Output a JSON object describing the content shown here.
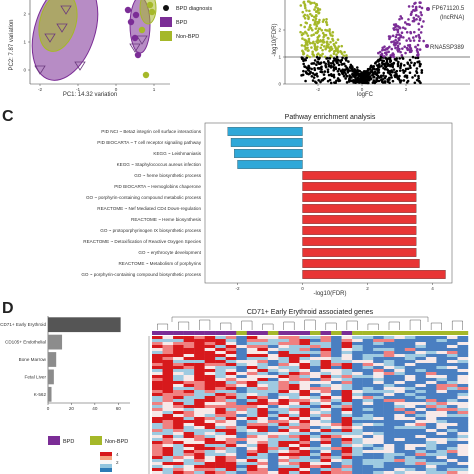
{
  "panels": {
    "c_letter": "C",
    "d_letter": "D"
  },
  "chart_data": [
    {
      "id": "pca",
      "type": "scatter",
      "xlabel": "PC1: 14.32  variation",
      "ylabel": "PC2: 7.87  variation",
      "xticks": [
        "-2",
        "-1",
        "0",
        "1"
      ],
      "yticks": [
        "0",
        "1",
        "2"
      ],
      "legend": [
        {
          "label": "BPD diagnosis",
          "marker": "dot",
          "color": "#111111"
        },
        {
          "label": "BPD",
          "color": "#7b2d96"
        },
        {
          "label": "Non-BPD",
          "color": "#a5b829"
        }
      ],
      "colors": {
        "bpd": "#7b2d96",
        "nonbpd": "#a5b829"
      }
    },
    {
      "id": "volcano",
      "type": "scatter",
      "xlabel": "logFC",
      "ylabel": "-log10(FDR)",
      "xticks": [
        "-2",
        "0",
        "2"
      ],
      "yticks": [
        "0",
        "1",
        "2"
      ],
      "annotations": [
        "FP671120.5",
        "(lncRNA)",
        "RNA5SP389"
      ],
      "colors": {
        "sig_down": "#a5b829",
        "sig_up": "#7b2d96",
        "ns": "#000000"
      }
    },
    {
      "id": "pathway",
      "type": "bar",
      "title": "Pathway enrichment analysis",
      "xlabel": "-log10(FDR)",
      "xticks": [
        "-2",
        "0",
        "2",
        "4"
      ],
      "xlim": [
        -3.0,
        4.6
      ],
      "categories": [
        "PID NCI ~ Beta2 integrin cell surface interactions",
        "PID BIOCARTA ~ T cell receptor signaling pathway",
        "KEGG ~ Leishmaniasis",
        "KEGG ~ Staphylococcus aureus infection",
        "GO ~ heme biosynthetic process",
        "PID BIOCARTA ~ Hemoglobins chaperone",
        "GO ~ porphyrin-containing compound metabolic process",
        "REACTOME ~ Nef Mediated CD4 Down-regulation",
        "REACTOME ~ Heme biosynthesis",
        "GO ~ protoporphyrinogen IX biosynthetic process",
        "REACTOME ~ Detoxification of Reactive Oxygen Species",
        "GO ~ erythrocyte development",
        "REACTOME ~ Metabolism of porphyrins",
        "GO ~ porphyrin-containing compound biosynthetic process"
      ],
      "values": [
        -2.3,
        -2.2,
        -2.1,
        -2.0,
        3.5,
        3.5,
        3.5,
        3.5,
        3.5,
        3.5,
        3.5,
        3.5,
        3.6,
        4.4
      ],
      "colors": {
        "neg": "#2fa8d8",
        "pos": "#e83535"
      }
    },
    {
      "id": "celltype",
      "type": "bar",
      "orientation": "horizontal",
      "categories": [
        "CD71+ Early Erythroid",
        "CD105+ Endothelial",
        "Bone Marrow",
        "Fetal Liver",
        "K-562"
      ],
      "values": [
        62,
        12,
        7,
        5,
        3
      ],
      "xticks": [
        "0",
        "20",
        "40",
        "60"
      ],
      "xlim": [
        0,
        70
      ],
      "highlight_color": "#555555",
      "color": "#8c8c8c"
    },
    {
      "id": "heatmap",
      "type": "heatmap",
      "title": "CD71+ Early Erythroid associated genes",
      "legend": [
        {
          "label": "BPD",
          "color": "#7b2d96"
        },
        {
          "label": "Non-BPD",
          "color": "#a5b829"
        }
      ],
      "colorbar_ticks": [
        "4",
        "2"
      ],
      "colorbar_colors": [
        "#d7191c",
        "#f4a582",
        "#f7f7f7",
        "#92c5de",
        "#2c7bb6"
      ],
      "sample_groups": [
        "BPD",
        "BPD",
        "BPD",
        "BPD",
        "BPD",
        "BPD",
        "BPD",
        "BPD",
        "Non-BPD",
        "BPD",
        "BPD",
        "Non-BPD",
        "BPD",
        "BPD",
        "BPD",
        "Non-BPD",
        "BPD",
        "Non-BPD",
        "BPD",
        "Non-BPD",
        "Non-BPD",
        "Non-BPD",
        "Non-BPD",
        "Non-BPD",
        "Non-BPD",
        "Non-BPD",
        "Non-BPD",
        "Non-BPD",
        "Non-BPD",
        "Non-BPD"
      ]
    }
  ]
}
